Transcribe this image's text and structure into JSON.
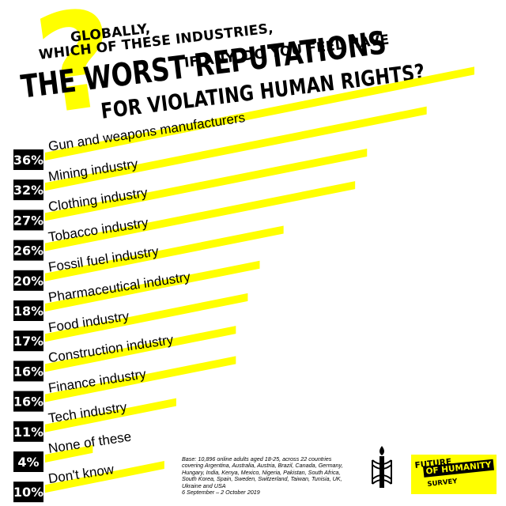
{
  "title_lines": [
    "GLOBALLY,",
    "WHICH OF THESE INDUSTRIES,",
    "IF ANY, DO YOU FEEL HAVE",
    "THE WORST REPUTATIONS",
    "FOR VIOLATING HUMAN RIGHTS?"
  ],
  "question_mark": "?",
  "chart_data": {
    "type": "bar",
    "title": "GLOBALLY, WHICH OF THESE INDUSTRIES, IF ANY, DO YOU FEEL HAVE THE WORST REPUTATIONS FOR VIOLATING HUMAN RIGHTS?",
    "categories": [
      "Gun and weapons manufacturers",
      "Mining industry",
      "Clothing industry",
      "Tobacco industry",
      "Fossil fuel industry",
      "Pharmaceutical industry",
      "Food industry",
      "Construction industry",
      "Finance industry",
      "Tech industry",
      "None of these",
      "Don't know"
    ],
    "values": [
      36,
      32,
      27,
      26,
      20,
      18,
      17,
      16,
      16,
      11,
      4,
      10
    ],
    "value_labels": [
      "36%",
      "32%",
      "27%",
      "26%",
      "20%",
      "18%",
      "17%",
      "16%",
      "16%",
      "11%",
      "4%",
      "10%"
    ],
    "unit": "%",
    "orientation": "horizontal",
    "xlim": [
      0,
      36
    ],
    "grid": false,
    "colors": {
      "bar": "#ffff00",
      "badge": "#000000",
      "badge_text": "#ffffff"
    }
  },
  "footnote": {
    "lines": [
      "Base: 10,896 online adults aged 18-25, across 22 countries",
      "covering Argentina, Australia, Austria, Brazil, Canada, Germany,",
      "Hungary, India, Kenya, Mexico, Nigeria, Pakistan, South Africa,",
      "South Korea, Spain, Sweden, Switzerland, Taiwan, Tunisia, UK,",
      "Ukraine and USA",
      "6 September – 2 October 2019"
    ]
  },
  "survey_logo": {
    "line1": "FUTURE",
    "line2": "OF HUMANITY",
    "line3": "SURVEY"
  },
  "icons": {
    "candle": "amnesty-candle-icon"
  },
  "colors": {
    "accent": "#ffff00",
    "text": "#000000",
    "background": "#ffffff"
  }
}
